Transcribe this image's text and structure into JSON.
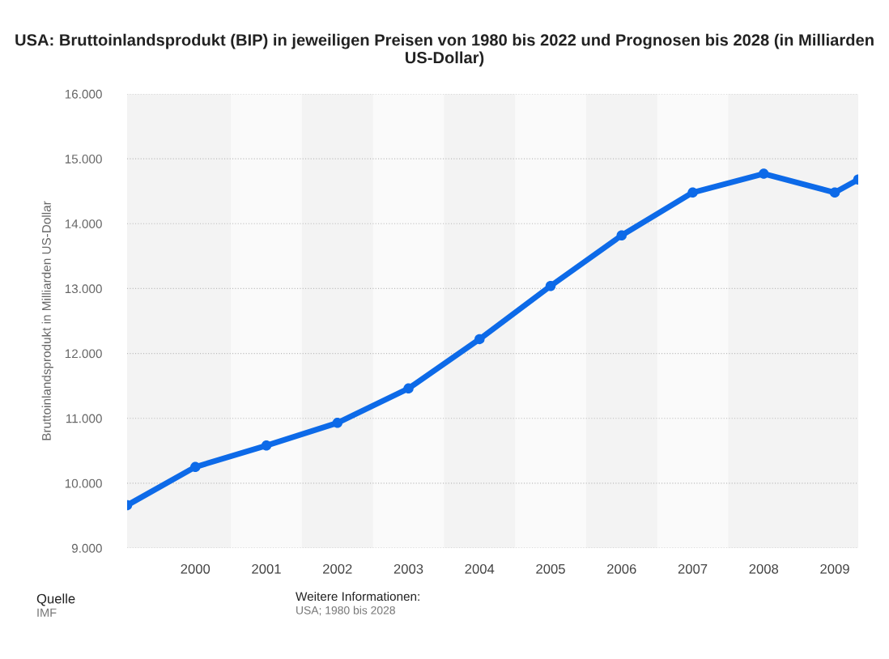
{
  "chart_data": {
    "type": "line",
    "title": "USA: Bruttoinlandsprodukt (BIP) in jeweiligen Preisen von 1980 bis 2022 und Prognosen bis 2028 (in Milliarden US-Dollar)",
    "ylabel": "Bruttoinlandsprodukt in Milliarden US-Dollar",
    "x": [
      1999.04,
      2000,
      2001,
      2002,
      2003,
      2004,
      2005,
      2006,
      2007,
      2008,
      2009,
      2009.33
    ],
    "series": [
      {
        "color": "#0d6ae8",
        "values": [
          9660,
          10250,
          10580,
          10930,
          11460,
          12220,
          13040,
          13820,
          14480,
          14770,
          14480,
          14680
        ]
      }
    ],
    "xlim": [
      1999.04,
      2009.33
    ],
    "xticks": [
      2000,
      2001,
      2002,
      2003,
      2004,
      2005,
      2006,
      2007,
      2008,
      2009
    ],
    "ylim": [
      9000,
      16000
    ],
    "yticks": [
      {
        "value": 9000,
        "label": "9.000"
      },
      {
        "value": 10000,
        "label": "10.000"
      },
      {
        "value": 11000,
        "label": "11.000"
      },
      {
        "value": 12000,
        "label": "12.000"
      },
      {
        "value": 13000,
        "label": "13.000"
      },
      {
        "value": 14000,
        "label": "14.000"
      },
      {
        "value": 15000,
        "label": "15.000"
      },
      {
        "value": 16000,
        "label": "16.000"
      }
    ],
    "bands": [
      {
        "axis": "x",
        "from": 2000.5,
        "to": 2001.5,
        "color": "#fafafa"
      },
      {
        "axis": "x",
        "from": 2002.5,
        "to": 2003.5,
        "color": "#fafafa"
      },
      {
        "axis": "x",
        "from": 2004.5,
        "to": 2005.5,
        "color": "#fafafa"
      },
      {
        "axis": "x",
        "from": 2006.5,
        "to": 2007.5,
        "color": "#fafafa"
      }
    ],
    "grid": "y",
    "marker": "circle",
    "line_style": "solid",
    "annotations": [
      "Quelle",
      "IMF",
      "Weitere Informationen:",
      "USA; 1980 bis 2028"
    ]
  }
}
